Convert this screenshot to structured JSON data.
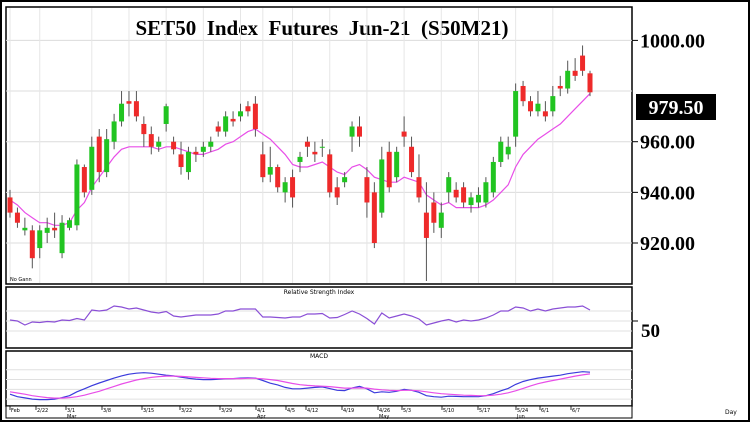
{
  "chart_data": [
    {
      "type": "candlestick",
      "title": "SET50  Index  Futures  Jun-21  (S50M21)",
      "note": "No Gann",
      "y_ticks": [
        1000,
        980,
        960,
        940,
        920
      ],
      "y_tick_labels": [
        "1000.00",
        "960.00",
        "940.00",
        "920.00"
      ],
      "last_value_label": "979.50",
      "ylim": [
        905,
        1012
      ],
      "moving_average_color": "#e84ee8",
      "up_color": "#21c421",
      "down_color": "#ee2a2a",
      "candles": [
        {
          "o": 938,
          "h": 941,
          "l": 930,
          "c": 932
        },
        {
          "o": 932,
          "h": 934,
          "l": 926,
          "c": 928
        },
        {
          "o": 925,
          "h": 930,
          "l": 923,
          "c": 926
        },
        {
          "o": 925,
          "h": 927,
          "l": 910,
          "c": 914
        },
        {
          "o": 918,
          "h": 927,
          "l": 914,
          "c": 925
        },
        {
          "o": 924,
          "h": 930,
          "l": 920,
          "c": 926
        },
        {
          "o": 926,
          "h": 932,
          "l": 922,
          "c": 925
        },
        {
          "o": 916,
          "h": 931,
          "l": 914,
          "c": 928
        },
        {
          "o": 926,
          "h": 930,
          "l": 925,
          "c": 929
        },
        {
          "o": 927,
          "h": 953,
          "l": 925,
          "c": 951
        },
        {
          "o": 950,
          "h": 951,
          "l": 938,
          "c": 940
        },
        {
          "o": 941,
          "h": 962,
          "l": 939,
          "c": 958
        },
        {
          "o": 962,
          "h": 965,
          "l": 944,
          "c": 948
        },
        {
          "o": 948,
          "h": 965,
          "l": 946,
          "c": 961
        },
        {
          "o": 960,
          "h": 971,
          "l": 957,
          "c": 968
        },
        {
          "o": 968,
          "h": 980,
          "l": 966,
          "c": 975
        },
        {
          "o": 976,
          "h": 980,
          "l": 970,
          "c": 975
        },
        {
          "o": 976,
          "h": 980,
          "l": 968,
          "c": 970
        },
        {
          "o": 967,
          "h": 970,
          "l": 958,
          "c": 963
        },
        {
          "o": 963,
          "h": 966,
          "l": 955,
          "c": 958
        },
        {
          "o": 958,
          "h": 962,
          "l": 956,
          "c": 960
        },
        {
          "o": 967,
          "h": 975,
          "l": 964,
          "c": 974
        },
        {
          "o": 960,
          "h": 962,
          "l": 955,
          "c": 957
        },
        {
          "o": 955,
          "h": 960,
          "l": 947,
          "c": 950
        },
        {
          "o": 948,
          "h": 958,
          "l": 945,
          "c": 956
        },
        {
          "o": 956,
          "h": 958,
          "l": 952,
          "c": 955
        },
        {
          "o": 956,
          "h": 960,
          "l": 954,
          "c": 958
        },
        {
          "o": 958,
          "h": 962,
          "l": 956,
          "c": 960
        },
        {
          "o": 966,
          "h": 968,
          "l": 962,
          "c": 964
        },
        {
          "o": 964,
          "h": 972,
          "l": 962,
          "c": 970
        },
        {
          "o": 969,
          "h": 972,
          "l": 966,
          "c": 968
        },
        {
          "o": 970,
          "h": 975,
          "l": 968,
          "c": 972
        },
        {
          "o": 974,
          "h": 976,
          "l": 970,
          "c": 972
        },
        {
          "o": 975,
          "h": 978,
          "l": 962,
          "c": 965
        },
        {
          "o": 955,
          "h": 960,
          "l": 944,
          "c": 946
        },
        {
          "o": 947,
          "h": 958,
          "l": 944,
          "c": 950
        },
        {
          "o": 950,
          "h": 951,
          "l": 940,
          "c": 942
        },
        {
          "o": 940,
          "h": 946,
          "l": 936,
          "c": 944
        },
        {
          "o": 946,
          "h": 949,
          "l": 934,
          "c": 938
        },
        {
          "o": 952,
          "h": 956,
          "l": 948,
          "c": 954
        },
        {
          "o": 960,
          "h": 962,
          "l": 954,
          "c": 958
        },
        {
          "o": 956,
          "h": 960,
          "l": 952,
          "c": 955
        },
        {
          "o": 958,
          "h": 961,
          "l": 954,
          "c": 958
        },
        {
          "o": 955,
          "h": 957,
          "l": 938,
          "c": 940
        },
        {
          "o": 942,
          "h": 946,
          "l": 935,
          "c": 938
        },
        {
          "o": 944,
          "h": 948,
          "l": 942,
          "c": 946
        },
        {
          "o": 962,
          "h": 968,
          "l": 956,
          "c": 966
        },
        {
          "o": 966,
          "h": 970,
          "l": 958,
          "c": 962
        },
        {
          "o": 946,
          "h": 950,
          "l": 930,
          "c": 936
        },
        {
          "o": 940,
          "h": 944,
          "l": 918,
          "c": 920
        },
        {
          "o": 932,
          "h": 958,
          "l": 930,
          "c": 953
        },
        {
          "o": 956,
          "h": 960,
          "l": 940,
          "c": 942
        },
        {
          "o": 946,
          "h": 958,
          "l": 944,
          "c": 956
        },
        {
          "o": 964,
          "h": 970,
          "l": 958,
          "c": 962
        },
        {
          "o": 958,
          "h": 962,
          "l": 946,
          "c": 948
        },
        {
          "o": 946,
          "h": 955,
          "l": 936,
          "c": 938
        },
        {
          "o": 932,
          "h": 944,
          "l": 905,
          "c": 922
        },
        {
          "o": 936,
          "h": 940,
          "l": 924,
          "c": 928
        },
        {
          "o": 926,
          "h": 936,
          "l": 922,
          "c": 932
        },
        {
          "o": 940,
          "h": 948,
          "l": 936,
          "c": 946
        },
        {
          "o": 941,
          "h": 944,
          "l": 936,
          "c": 938
        },
        {
          "o": 942,
          "h": 944,
          "l": 934,
          "c": 936
        },
        {
          "o": 935,
          "h": 940,
          "l": 932,
          "c": 938
        },
        {
          "o": 936,
          "h": 942,
          "l": 934,
          "c": 939
        },
        {
          "o": 936,
          "h": 946,
          "l": 934,
          "c": 944
        },
        {
          "o": 940,
          "h": 954,
          "l": 938,
          "c": 952
        },
        {
          "o": 952,
          "h": 962,
          "l": 950,
          "c": 960
        },
        {
          "o": 955,
          "h": 962,
          "l": 953,
          "c": 958
        },
        {
          "o": 962,
          "h": 983,
          "l": 958,
          "c": 980
        },
        {
          "o": 982,
          "h": 984,
          "l": 974,
          "c": 976
        },
        {
          "o": 976,
          "h": 978,
          "l": 970,
          "c": 972
        },
        {
          "o": 972,
          "h": 980,
          "l": 970,
          "c": 975
        },
        {
          "o": 972,
          "h": 976,
          "l": 968,
          "c": 970
        },
        {
          "o": 972,
          "h": 982,
          "l": 970,
          "c": 978
        },
        {
          "o": 982,
          "h": 986,
          "l": 978,
          "c": 981
        },
        {
          "o": 981,
          "h": 992,
          "l": 979,
          "c": 988
        },
        {
          "o": 988,
          "h": 993,
          "l": 984,
          "c": 986
        },
        {
          "o": 994,
          "h": 998,
          "l": 986,
          "c": 988
        },
        {
          "o": 987,
          "h": 988,
          "l": 978,
          "c": 979.5
        }
      ],
      "moving_average": [
        937,
        935,
        932,
        930,
        928,
        928,
        927,
        927,
        928,
        933,
        936,
        942,
        946,
        950,
        954,
        957,
        958,
        958,
        958,
        958,
        957,
        958,
        958,
        957,
        956,
        955,
        955,
        956,
        957,
        959,
        960,
        962,
        964,
        965,
        963,
        961,
        958,
        955,
        951,
        950,
        950,
        951,
        952,
        950,
        948,
        947,
        950,
        951,
        949,
        946,
        945,
        944,
        944,
        946,
        945,
        944,
        939,
        937,
        935,
        936,
        934,
        934,
        934,
        934,
        935,
        937,
        940,
        943,
        950,
        955,
        958,
        961,
        963,
        965,
        967,
        970,
        973,
        976,
        979
      ],
      "x_tick_labels": [
        "Feb",
        "2/22",
        "3/1",
        "3/8",
        "3/15",
        "3/22",
        "3/29",
        "4/1",
        "4/5",
        "4/12",
        "4/19",
        "4/26",
        "5/3",
        "5/10",
        "5/17",
        "5/24",
        "6/1",
        "6/7"
      ],
      "x_month_labels": [
        "Feb",
        "Mar",
        "Apr",
        "May",
        "Jun"
      ],
      "x_axis_unit": "Day"
    },
    {
      "type": "line",
      "title": "Relative Strength Index",
      "y_tick_labels": [
        "50"
      ],
      "ylim": [
        0,
        100
      ],
      "series": [
        {
          "color": "#8a4fd6",
          "values": [
            52,
            50,
            42,
            48,
            47,
            49,
            48,
            52,
            51,
            55,
            52,
            72,
            70,
            72,
            80,
            78,
            74,
            76,
            72,
            68,
            66,
            69,
            60,
            58,
            60,
            62,
            62,
            62,
            64,
            70,
            70,
            74,
            74,
            74,
            58,
            58,
            57,
            56,
            58,
            58,
            64,
            64,
            65,
            56,
            57,
            63,
            70,
            64,
            55,
            44,
            66,
            56,
            60,
            64,
            60,
            54,
            42,
            46,
            50,
            53,
            48,
            52,
            50,
            52,
            56,
            62,
            70,
            70,
            78,
            76,
            70,
            74,
            70,
            74,
            76,
            78,
            78,
            80,
            72
          ]
        }
      ]
    },
    {
      "type": "line",
      "title": "MACD",
      "ylim": [
        -6,
        12
      ],
      "series": [
        {
          "color": "#3b3bdc",
          "values": [
            -2,
            -3,
            -3.5,
            -4,
            -4.2,
            -4.2,
            -4.0,
            -3.4,
            -2.6,
            -1.0,
            0.2,
            1.5,
            2.6,
            3.6,
            4.6,
            5.5,
            6.2,
            6.6,
            6.8,
            6.6,
            6.2,
            5.8,
            5.5,
            5.0,
            4.5,
            4.2,
            4.0,
            4.0,
            4.1,
            4.3,
            4.4,
            4.6,
            4.7,
            4.6,
            3.6,
            2.5,
            1.8,
            0.8,
            0.2,
            0.2,
            0.5,
            0.8,
            1.0,
            0.3,
            -0.4,
            -0.5,
            0.6,
            1.2,
            0.2,
            -1.4,
            -1.0,
            -1.2,
            -0.8,
            0.0,
            -0.4,
            -1.2,
            -2.6,
            -3.0,
            -3.2,
            -2.8,
            -2.9,
            -3.0,
            -3.0,
            -3.0,
            -2.6,
            -1.8,
            -0.6,
            0.4,
            2.0,
            3.2,
            4.0,
            4.6,
            5.0,
            5.4,
            5.8,
            6.4,
            6.8,
            7.2,
            7.0
          ]
        },
        {
          "color": "#e84ee8",
          "values": [
            -1,
            -1.5,
            -2,
            -2.6,
            -3.0,
            -3.4,
            -3.6,
            -3.6,
            -3.4,
            -3.0,
            -2.4,
            -1.6,
            -0.8,
            0.2,
            1.2,
            2.2,
            3.0,
            3.8,
            4.4,
            4.9,
            5.2,
            5.4,
            5.4,
            5.3,
            5.1,
            4.9,
            4.7,
            4.5,
            4.4,
            4.4,
            4.4,
            4.4,
            4.5,
            4.5,
            4.3,
            4.0,
            3.6,
            3.0,
            2.4,
            1.9,
            1.6,
            1.4,
            1.3,
            1.1,
            0.8,
            0.5,
            0.5,
            0.6,
            0.5,
            0.1,
            -0.2,
            -0.4,
            -0.5,
            -0.4,
            -0.4,
            -0.6,
            -1.0,
            -1.4,
            -1.8,
            -2.0,
            -2.2,
            -2.4,
            -2.5,
            -2.6,
            -2.6,
            -2.4,
            -2.0,
            -1.4,
            -0.6,
            0.4,
            1.4,
            2.3,
            3.0,
            3.6,
            4.2,
            4.8,
            5.4,
            5.9,
            6.3
          ]
        }
      ]
    }
  ]
}
